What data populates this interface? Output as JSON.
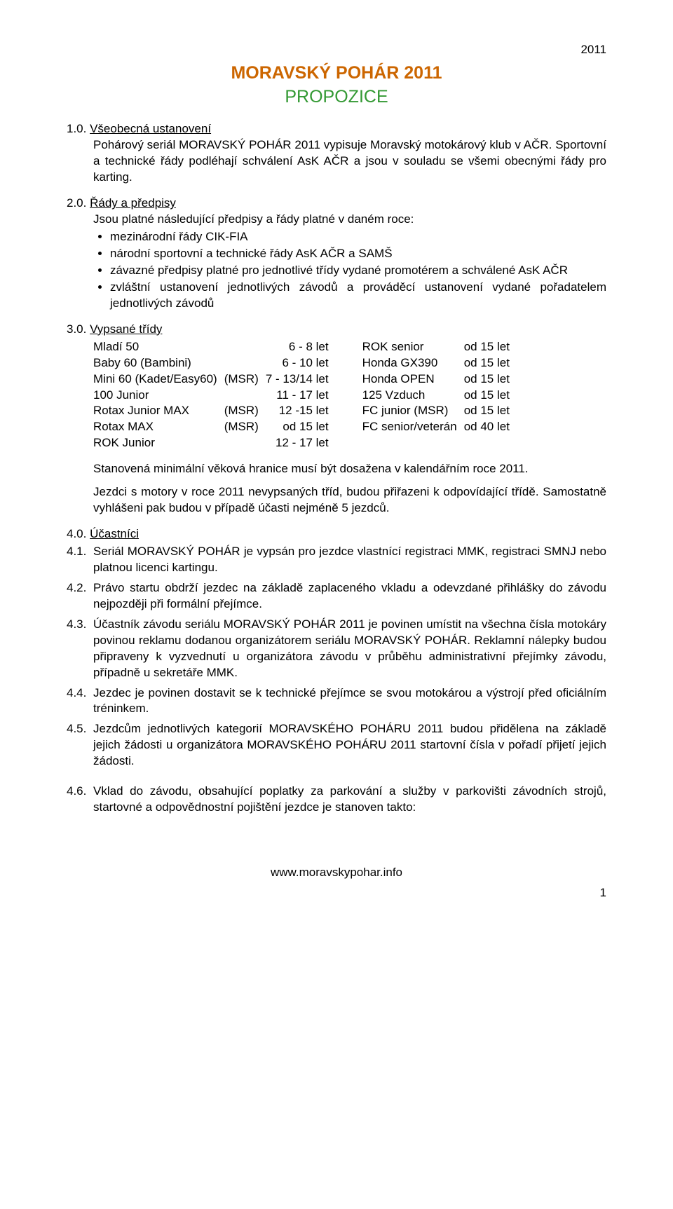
{
  "year_label": "2011",
  "title": "MORAVSKÝ POHÁR 2011",
  "subtitle": "PROPOZICE",
  "colors": {
    "title": "#cc6600",
    "subtitle": "#339933",
    "text": "#000000",
    "background": "#ffffff"
  },
  "section1": {
    "num": "1.0. ",
    "heading": "Všeobecná ustanovení",
    "body": "Pohárový seriál MORAVSKÝ POHÁR 2011 vypisuje  Moravský motokárový klub v AČR. Sportovní a technické řády podléhají schválení AsK AČR a jsou v souladu se všemi obecnými řády pro karting."
  },
  "section2": {
    "num": "2.0. ",
    "heading": "Řády a předpisy",
    "intro": "Jsou platné následující předpisy a řády platné v daném roce:",
    "bullets": [
      "mezinárodní řády CIK-FIA",
      "národní sportovní a technické řády AsK AČR a SAMŠ",
      "závazné předpisy platné pro jednotlivé třídy vydané promotérem a schválené AsK AČR",
      "zvláštní ustanovení jednotlivých závodů a prováděcí ustanovení vydané pořadatelem jednotlivých závodů"
    ]
  },
  "section3": {
    "num": "3.0. ",
    "heading": "Vypsané třídy",
    "rows": [
      {
        "c1": "Mladí 50",
        "tag": "",
        "age1": "6 - 8 let",
        "c2": "ROK senior",
        "age2": "od 15 let"
      },
      {
        "c1": "Baby 60 (Bambini)",
        "tag": "",
        "age1": "6 - 10 let",
        "c2": "Honda GX390",
        "age2": "od 15 let"
      },
      {
        "c1": "Mini 60 (Kadet/Easy60)",
        "tag": "(MSR)",
        "age1": "7 - 13/14 let",
        "c2": "Honda OPEN",
        "age2": "od 15 let"
      },
      {
        "c1": "100 Junior",
        "tag": "",
        "age1": "11 - 17 let",
        "c2": "125 Vzduch",
        "age2": "od 15 let"
      },
      {
        "c1": "Rotax Junior MAX",
        "tag": "(MSR)",
        "age1": "12 -15 let",
        "c2": "FC junior (MSR)",
        "age2": "od 15 let"
      },
      {
        "c1": "Rotax MAX",
        "tag": "(MSR)",
        "age1": "od 15 let",
        "c2": "FC senior/veterán",
        "age2": "od 40 let"
      },
      {
        "c1": "ROK Junior",
        "tag": "",
        "age1": "12 - 17 let",
        "c2": "",
        "age2": ""
      }
    ],
    "para_a": "Stanovená minimální věková hranice musí být dosažena v kalendářním roce 2011.",
    "para_b": "Jezdci s motory v roce 2011 nevypsaných tříd, budou přiřazeni k odpovídající třídě. Samostatně vyhlášeni pak budou v případě účasti nejméně 5 jezdců."
  },
  "section4": {
    "num": "4.0. ",
    "heading": "Účastníci",
    "items": [
      {
        "n": "4.1.",
        "t": "Seriál MORAVSKÝ POHÁR je vypsán pro jezdce vlastnící registraci MMK, registraci SMNJ nebo platnou licenci kartingu."
      },
      {
        "n": "4.2.",
        "t": "Právo startu obdrží jezdec na základě zaplaceného vkladu a odevzdané přihlášky do závodu nejpozději při formální přejímce."
      },
      {
        "n": "4.3.",
        "t": "Účastník závodu seriálu MORAVSKÝ POHÁR 2011 je povinen umístit na všechna čísla motokáry povinou reklamu dodanou organizátorem seriálu MORAVSKÝ POHÁR. Reklamní nálepky budou připraveny k vyzvednutí u organizátora závodu v průběhu administrativní přejímky závodu, případně u sekretáře MMK."
      },
      {
        "n": "4.4.",
        "t": "Jezdec je povinen dostavit se k technické přejímce se svou motokárou a výstrojí před oficiálním tréninkem."
      },
      {
        "n": "4.5.",
        "t": "Jezdcům jednotlivých kategorií MORAVSKÉHO POHÁRU 2011 budou přidělena na základě jejich žádosti u organizátora MORAVSKÉHO POHÁRU 2011 startovní čísla v pořadí přijetí jejich žádosti."
      },
      {
        "n": "4.6.",
        "t": "Vklad do závodu, obsahující poplatky za parkování a služby v parkovišti závodních strojů, startovné a odpovědnostní pojištění jezdce je stanoven takto:"
      }
    ]
  },
  "footer_url": "www.moravskypohar.info",
  "page_number": "1"
}
